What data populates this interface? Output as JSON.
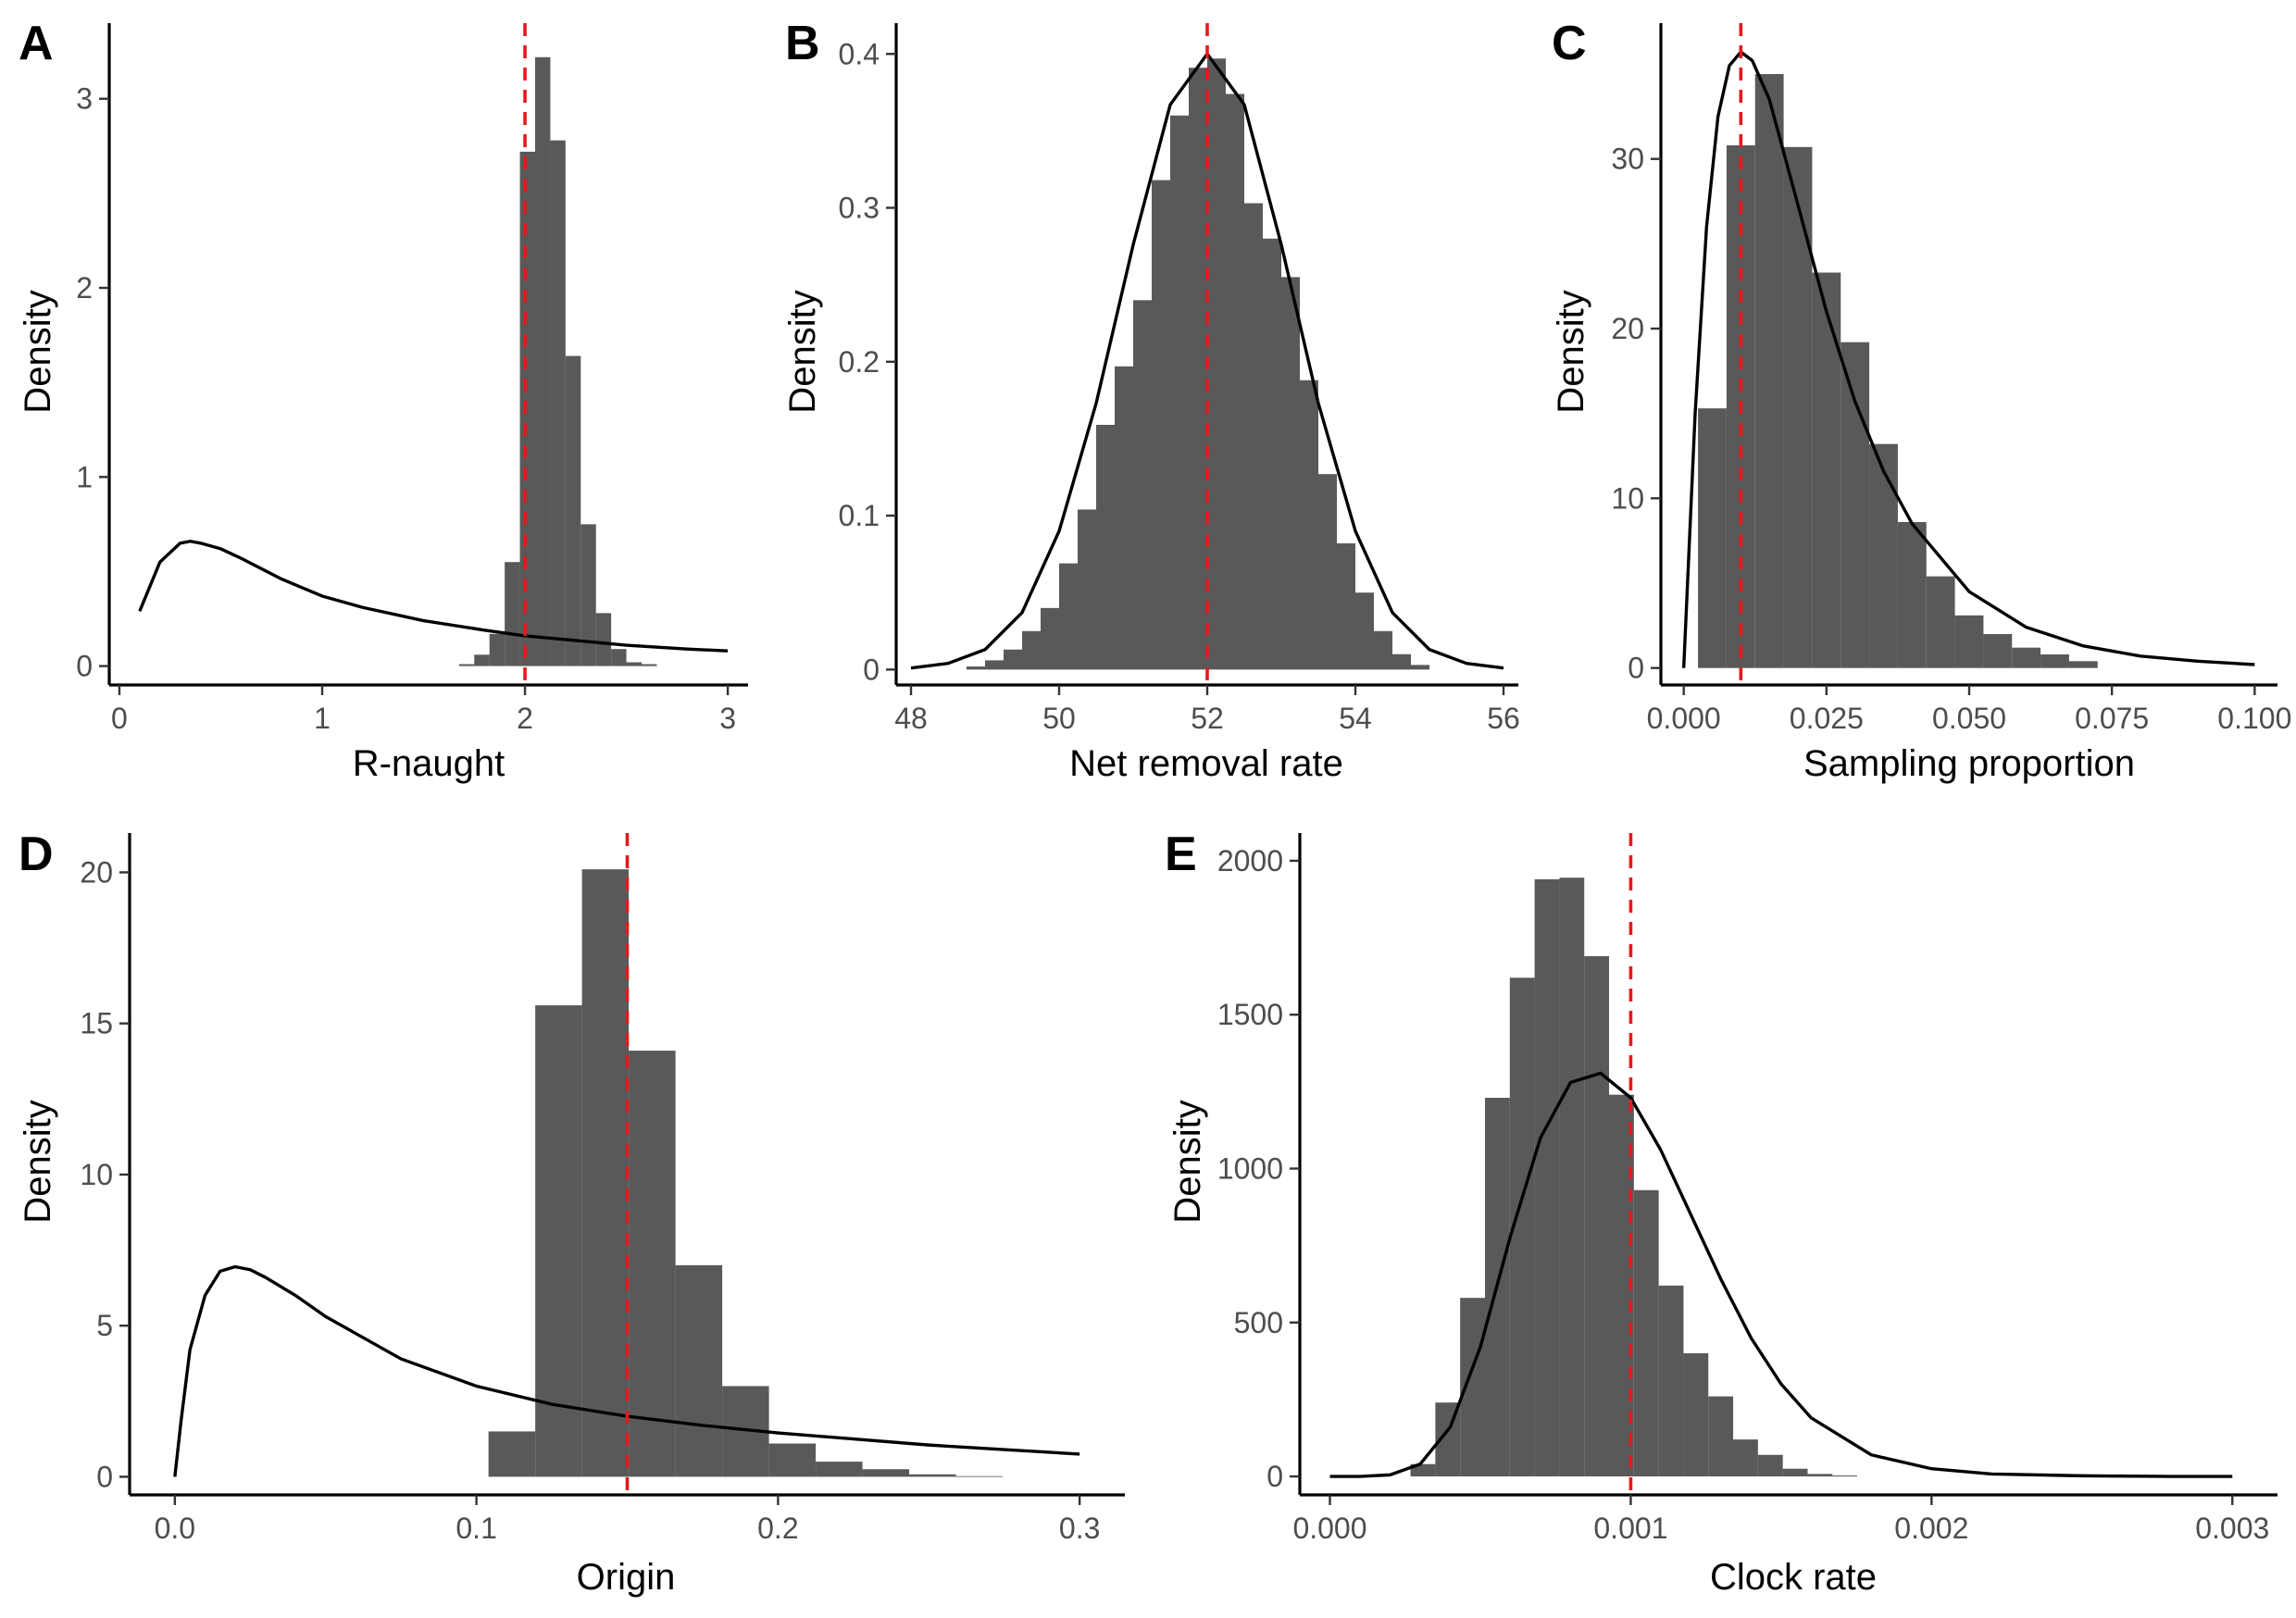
{
  "chart_data": [
    {
      "panel": "A",
      "type": "bar",
      "xlabel": "R-naught",
      "ylabel": "Density",
      "xlim": [
        -0.05,
        3.1
      ],
      "ylim": [
        -0.1,
        3.4
      ],
      "xticks": [
        0,
        1,
        2,
        3
      ],
      "yticks": [
        0,
        1,
        2,
        3
      ],
      "reference_x": 2,
      "bin_width": 0.075,
      "histogram": {
        "left": [
          1.675,
          1.75,
          1.825,
          1.9,
          1.975,
          2.05,
          2.125,
          2.2,
          2.275,
          2.35,
          2.425,
          2.5,
          2.575
        ],
        "density": [
          0.01,
          0.06,
          0.17,
          0.55,
          2.72,
          3.22,
          2.78,
          1.64,
          0.75,
          0.28,
          0.09,
          0.02,
          0.01
        ]
      },
      "prior_curve": {
        "x": [
          0.1,
          0.2,
          0.3,
          0.35,
          0.4,
          0.5,
          0.6,
          0.8,
          1.0,
          1.2,
          1.5,
          1.8,
          2.0,
          2.2,
          2.5,
          2.8,
          3.0
        ],
        "y": [
          0.29,
          0.55,
          0.65,
          0.66,
          0.65,
          0.62,
          0.57,
          0.46,
          0.37,
          0.31,
          0.24,
          0.19,
          0.16,
          0.14,
          0.11,
          0.09,
          0.08
        ]
      }
    },
    {
      "panel": "B",
      "type": "bar",
      "xlabel": "Net removal rate",
      "ylabel": "Density",
      "xlim": [
        47.8,
        56.2
      ],
      "ylim": [
        -0.01,
        0.42
      ],
      "xticks": [
        48,
        50,
        52,
        54,
        56
      ],
      "yticks": [
        0.0,
        0.1,
        0.2,
        0.3,
        0.4
      ],
      "reference_x": 52,
      "bin_width": 0.25,
      "histogram": {
        "left": [
          48.75,
          49.0,
          49.25,
          49.5,
          49.75,
          50.0,
          50.25,
          50.5,
          50.75,
          51.0,
          51.25,
          51.5,
          51.75,
          52.0,
          52.25,
          52.5,
          52.75,
          53.0,
          53.25,
          53.5,
          53.75,
          54.0,
          54.25,
          54.5,
          54.75
        ],
        "density": [
          0.002,
          0.006,
          0.013,
          0.025,
          0.04,
          0.069,
          0.104,
          0.159,
          0.197,
          0.24,
          0.318,
          0.36,
          0.391,
          0.397,
          0.374,
          0.303,
          0.28,
          0.255,
          0.188,
          0.127,
          0.082,
          0.05,
          0.025,
          0.01,
          0.003
        ]
      },
      "prior_curve": {
        "x": [
          48.0,
          48.5,
          49.0,
          49.5,
          50.0,
          50.5,
          51.0,
          51.5,
          52.0,
          52.5,
          53.0,
          53.5,
          54.0,
          54.5,
          55.0,
          55.5,
          56.0
        ],
        "y": [
          0.001,
          0.004,
          0.013,
          0.037,
          0.09,
          0.173,
          0.276,
          0.367,
          0.4,
          0.367,
          0.276,
          0.173,
          0.09,
          0.037,
          0.013,
          0.004,
          0.001
        ]
      }
    },
    {
      "panel": "C",
      "type": "bar",
      "xlabel": "Sampling proportion",
      "ylabel": "Density",
      "xlim": [
        -0.004,
        0.104
      ],
      "ylim": [
        -1,
        38
      ],
      "xticks": [
        0.0,
        0.025,
        0.05,
        0.075,
        0.1
      ],
      "xtick_labels": [
        "0.000",
        "0.025",
        "0.050",
        "0.075",
        "0.100"
      ],
      "yticks": [
        0,
        10,
        20,
        30
      ],
      "reference_x": 0.01,
      "bin_width": 0.005,
      "histogram": {
        "left": [
          0.0025,
          0.0075,
          0.0125,
          0.0175,
          0.0225,
          0.0275,
          0.0325,
          0.0375,
          0.0425,
          0.0475,
          0.0525,
          0.0575,
          0.0625,
          0.0675
        ],
        "density": [
          15.3,
          30.8,
          35.0,
          30.7,
          23.3,
          19.2,
          13.2,
          8.6,
          5.4,
          3.1,
          2.0,
          1.2,
          0.8,
          0.4
        ]
      },
      "prior_curve": {
        "x": [
          0.0,
          0.001,
          0.002,
          0.004,
          0.006,
          0.008,
          0.01,
          0.012,
          0.015,
          0.02,
          0.025,
          0.03,
          0.035,
          0.04,
          0.05,
          0.06,
          0.07,
          0.08,
          0.09,
          0.1
        ],
        "y": [
          0.0,
          7.5,
          15.0,
          26.0,
          32.5,
          35.5,
          36.3,
          35.8,
          33.5,
          27.3,
          21.0,
          15.7,
          11.6,
          8.5,
          4.5,
          2.4,
          1.3,
          0.7,
          0.4,
          0.2
        ]
      }
    },
    {
      "panel": "D",
      "type": "bar",
      "xlabel": "Origin",
      "ylabel": "Density",
      "xlim": [
        -0.015,
        0.315
      ],
      "ylim": [
        -0.6,
        21.3
      ],
      "xticks": [
        0.0,
        0.1,
        0.2,
        0.3
      ],
      "xtick_labels": [
        "0.0",
        "0.1",
        "0.2",
        "0.3"
      ],
      "yticks": [
        0,
        5,
        10,
        15,
        20
      ],
      "reference_x": 0.15,
      "bin_width": 0.0155,
      "histogram": {
        "left": [
          0.104,
          0.1195,
          0.135,
          0.1505,
          0.166,
          0.1815,
          0.197,
          0.2125,
          0.228,
          0.2435,
          0.259
        ],
        "density": [
          1.5,
          15.6,
          20.1,
          14.1,
          7.0,
          3.0,
          1.1,
          0.5,
          0.25,
          0.08,
          0.02
        ]
      },
      "prior_curve": {
        "x": [
          0.0,
          0.002,
          0.005,
          0.01,
          0.015,
          0.02,
          0.025,
          0.03,
          0.04,
          0.05,
          0.075,
          0.1,
          0.125,
          0.15,
          0.175,
          0.2,
          0.225,
          0.25,
          0.275,
          0.3
        ],
        "y": [
          0.0,
          1.8,
          4.2,
          6.0,
          6.8,
          6.95,
          6.85,
          6.6,
          6.0,
          5.3,
          3.9,
          3.0,
          2.4,
          2.0,
          1.7,
          1.45,
          1.25,
          1.05,
          0.9,
          0.75
        ]
      }
    },
    {
      "panel": "E",
      "type": "bar",
      "xlabel": "Clock rate",
      "ylabel": "Density",
      "xlim": [
        -0.0001,
        0.00315
      ],
      "ylim": [
        -60,
        2090
      ],
      "xticks": [
        0.0,
        0.001,
        0.002,
        0.003
      ],
      "xtick_labels": [
        "0.000",
        "0.001",
        "0.002",
        "0.003"
      ],
      "yticks": [
        0,
        500,
        1000,
        1500,
        2000
      ],
      "reference_x": 0.001,
      "bin_width": 8.25e-05,
      "histogram": {
        "left": [
          0.000268,
          0.0003505,
          0.000433,
          0.0005155,
          0.000598,
          0.0006805,
          0.000763,
          0.0008455,
          0.000928,
          0.0010105,
          0.001093,
          0.0011755,
          0.001258,
          0.0013405,
          0.001423,
          0.0015055,
          0.001588,
          0.0016705
        ],
        "density": [
          40,
          240,
          580,
          1230,
          1620,
          1940,
          1945,
          1690,
          1240,
          930,
          620,
          400,
          260,
          120,
          70,
          25,
          8,
          3
        ]
      },
      "prior_curve": {
        "x": [
          0.0,
          0.0001,
          0.0002,
          0.0003,
          0.0004,
          0.0005,
          0.0006,
          0.0007,
          0.0008,
          0.0009,
          0.001,
          0.0011,
          0.0012,
          0.0013,
          0.0014,
          0.0015,
          0.0016,
          0.0018,
          0.002,
          0.0022,
          0.0025,
          0.0028,
          0.003
        ],
        "y": [
          0,
          0,
          5,
          40,
          160,
          420,
          780,
          1100,
          1280,
          1310,
          1230,
          1060,
          850,
          640,
          450,
          300,
          190,
          70,
          25,
          8,
          2,
          0,
          0
        ]
      }
    }
  ]
}
